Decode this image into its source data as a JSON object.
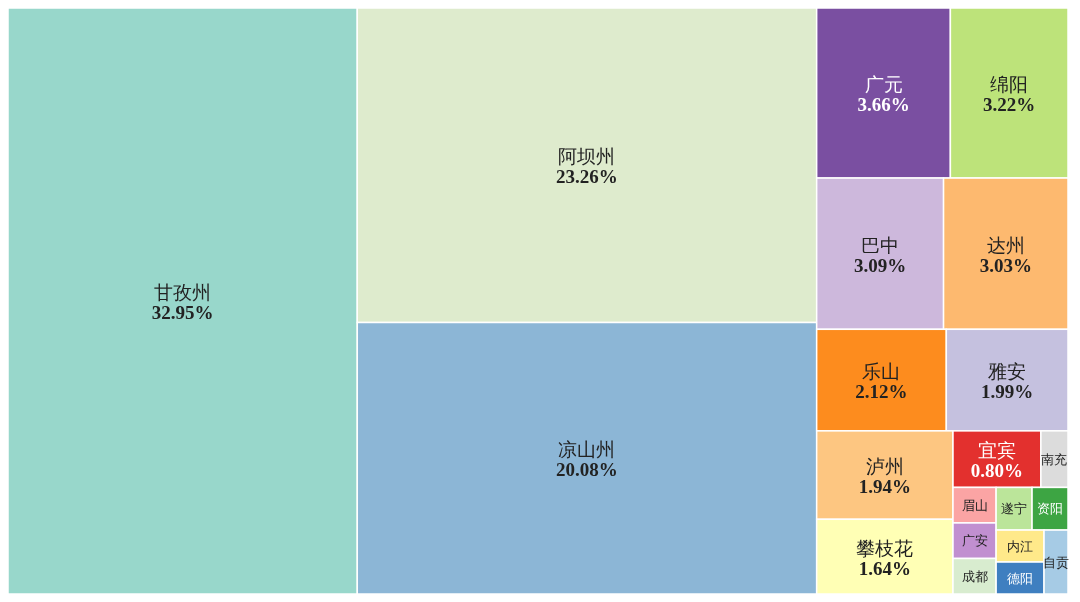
{
  "chart_data": {
    "type": "other",
    "categories": [
      "甘孜州",
      "阿坝州",
      "凉山州",
      "广元",
      "绵阳",
      "巴中",
      "达州",
      "乐山",
      "雅安",
      "泸州",
      "攀枝花",
      "宜宾",
      "南充",
      "眉山",
      "广安",
      "成都",
      "遂宁",
      "资阳",
      "内江",
      "德阳",
      "自贡"
    ],
    "values": [
      32.95,
      23.26,
      20.08,
      3.66,
      3.22,
      3.09,
      3.03,
      2.12,
      1.99,
      1.94,
      1.64,
      0.8,
      null,
      null,
      null,
      null,
      null,
      null,
      null,
      null,
      null
    ],
    "value_labels": [
      "32.95%",
      "23.26%",
      "20.08%",
      "3.66%",
      "3.22%",
      "3.09%",
      "3.03%",
      "2.12%",
      "1.99%",
      "1.94%",
      "1.64%",
      "0.80%",
      null,
      null,
      null,
      null,
      null,
      null,
      null,
      null,
      null
    ],
    "colors": [
      "#98d7cb",
      "#deebcd",
      "#8cb6d6",
      "#7a4fa1",
      "#bde37a",
      "#cdb8dc",
      "#fdb96f",
      "#fd8c1e",
      "#c5c1df",
      "#fdc681",
      "#ffffb5",
      "#e3302e",
      "#dcdcdc",
      "#fba4a4",
      "#c18fd0",
      "#d8eccf",
      "#bbe59a",
      "#3da543",
      "#ffe98a",
      "#3f7fc0",
      "#a6cbe5"
    ]
  }
}
